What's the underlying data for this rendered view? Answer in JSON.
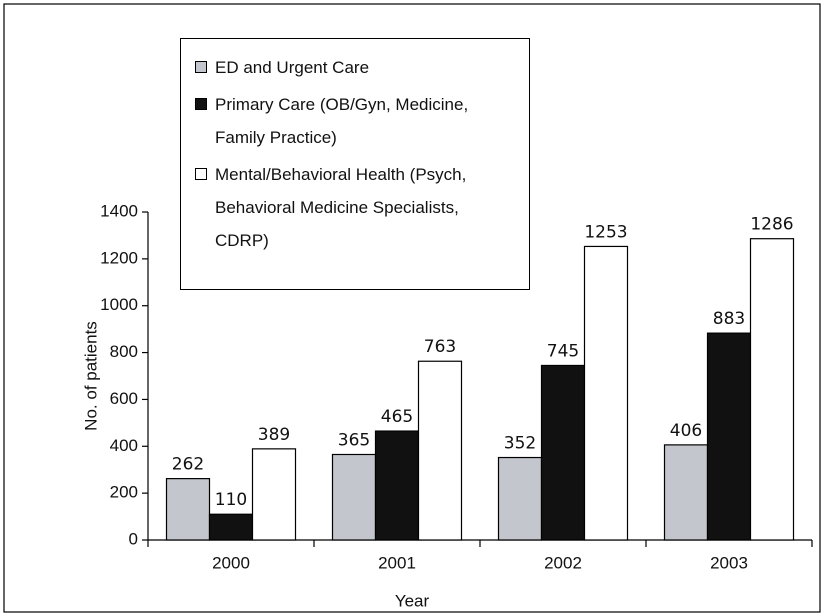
{
  "chart_data": {
    "type": "bar",
    "categories": [
      "2000",
      "2001",
      "2002",
      "2003"
    ],
    "series": [
      {
        "name": "ED and Urgent Care",
        "color": "#c3c6cc",
        "values": [
          262,
          365,
          352,
          406
        ]
      },
      {
        "name": "Primary Care (OB/Gyn, Medicine, Family Practice)",
        "color": "#111111",
        "values": [
          110,
          465,
          745,
          883
        ]
      },
      {
        "name": "Mental/Behavioral Health (Psych, Behavioral Medicine Specialists, CDRP)",
        "color": "#ffffff",
        "values": [
          389,
          763,
          1253,
          1286
        ]
      }
    ],
    "x_label": "Year",
    "y_label": "No. of patients",
    "ylim": [
      0,
      1400
    ],
    "yticks": [
      0,
      200,
      400,
      600,
      800,
      1000,
      1200,
      1400
    ],
    "grid": false,
    "legend": "top-left"
  }
}
